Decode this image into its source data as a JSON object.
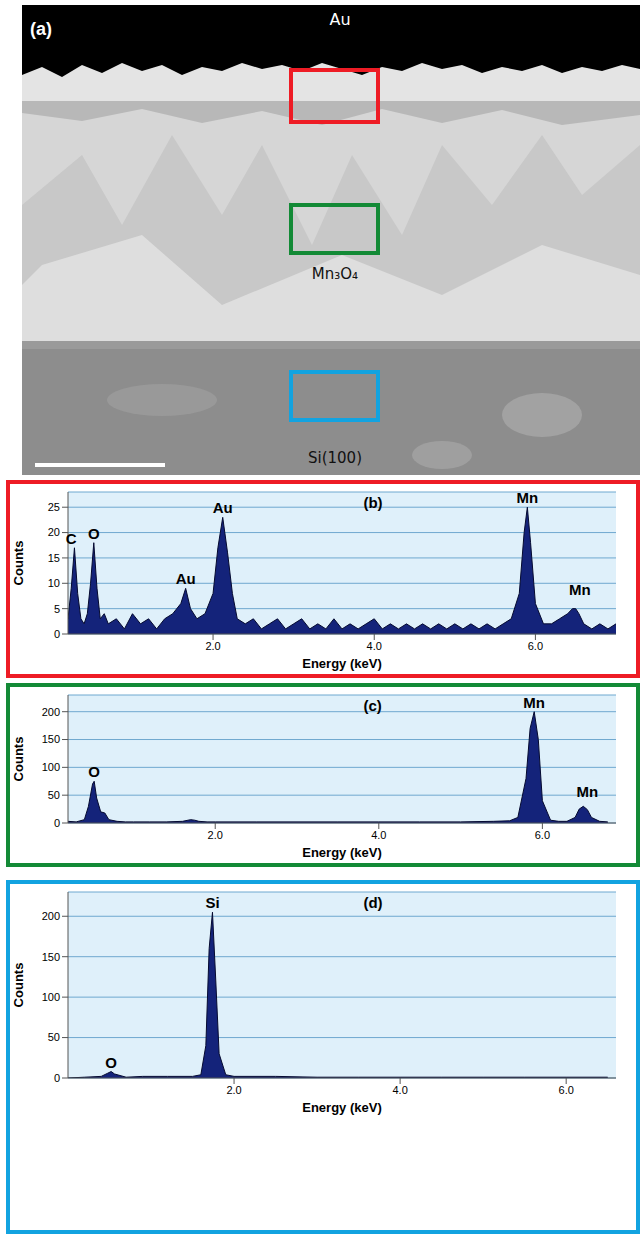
{
  "image": {
    "label": "(a)",
    "layers": [
      {
        "label": "Au"
      },
      {
        "label": "Mn₃O₄"
      },
      {
        "label": "Si(100)"
      }
    ],
    "boxes": [
      "#ee1c25",
      "#138a36",
      "#12a3e0"
    ]
  },
  "chart_data": [
    {
      "type": "area",
      "title": "(b)",
      "xlabel": "Energy (keV)",
      "ylabel": "Counts",
      "color": "#14237a",
      "grid": true,
      "xlim": [
        0.2,
        7.0
      ],
      "xticks": [
        {
          "value": 2,
          "label": "2.0"
        },
        {
          "value": 4,
          "label": "4.0"
        },
        {
          "value": 6,
          "label": "6.0"
        }
      ],
      "ylim": [
        0,
        28
      ],
      "yticks": [
        0,
        5,
        10,
        15,
        20,
        25
      ],
      "x": [
        0.2,
        0.24,
        0.28,
        0.32,
        0.36,
        0.4,
        0.44,
        0.48,
        0.52,
        0.56,
        0.6,
        0.65,
        0.7,
        0.8,
        0.9,
        1.0,
        1.1,
        1.2,
        1.3,
        1.4,
        1.5,
        1.6,
        1.66,
        1.72,
        1.8,
        1.9,
        2.0,
        2.06,
        2.12,
        2.18,
        2.24,
        2.3,
        2.4,
        2.5,
        2.6,
        2.7,
        2.8,
        2.9,
        3.0,
        3.1,
        3.2,
        3.3,
        3.4,
        3.5,
        3.6,
        3.7,
        3.8,
        3.9,
        4.0,
        4.1,
        4.2,
        4.3,
        4.4,
        4.5,
        4.6,
        4.7,
        4.8,
        4.9,
        5.0,
        5.1,
        5.2,
        5.3,
        5.4,
        5.5,
        5.6,
        5.7,
        5.8,
        5.86,
        5.9,
        5.94,
        6.0,
        6.1,
        6.2,
        6.3,
        6.4,
        6.46,
        6.5,
        6.54,
        6.6,
        6.7,
        6.8,
        6.9,
        7.0
      ],
      "values": [
        3,
        9,
        17,
        8,
        3,
        2,
        4,
        10,
        18,
        9,
        3,
        4,
        2,
        3,
        1,
        4,
        2,
        3,
        1,
        3,
        4,
        6,
        9,
        5,
        3,
        4,
        8,
        17,
        23,
        16,
        8,
        3,
        2,
        3,
        1,
        2,
        3,
        1,
        2,
        3,
        1,
        2,
        1,
        3,
        1,
        2,
        1,
        2,
        3,
        1,
        2,
        1,
        2,
        1,
        2,
        1,
        2,
        1,
        2,
        1,
        2,
        1,
        2,
        1,
        2,
        3,
        8,
        20,
        25,
        18,
        6,
        2,
        2,
        3,
        4,
        5,
        5,
        4,
        2,
        1,
        2,
        1,
        2
      ],
      "annotations": [
        {
          "text": "C",
          "x": 0.24,
          "y": 17
        },
        {
          "text": "O",
          "x": 0.52,
          "y": 18
        },
        {
          "text": "Au",
          "x": 1.66,
          "y": 9
        },
        {
          "text": "Au",
          "x": 2.12,
          "y": 23
        },
        {
          "text": "Mn",
          "x": 5.9,
          "y": 25
        },
        {
          "text": "Mn",
          "x": 6.55,
          "y": 7
        }
      ]
    },
    {
      "type": "area",
      "title": "(c)",
      "xlabel": "Energy (keV)",
      "ylabel": "Counts",
      "color": "#14237a",
      "grid": true,
      "xlim": [
        0.2,
        6.9
      ],
      "xticks": [
        {
          "value": 2,
          "label": "2.0"
        },
        {
          "value": 4,
          "label": "4.0"
        },
        {
          "value": 6,
          "label": "6.0"
        }
      ],
      "ylim": [
        0,
        230
      ],
      "yticks": [
        0,
        50,
        100,
        150,
        200
      ],
      "x": [
        0.2,
        0.3,
        0.4,
        0.45,
        0.5,
        0.52,
        0.55,
        0.6,
        0.65,
        0.7,
        0.8,
        0.9,
        1.0,
        1.2,
        1.4,
        1.6,
        1.7,
        1.75,
        1.8,
        1.9,
        2.0,
        2.5,
        3.0,
        3.5,
        4.0,
        4.5,
        5.0,
        5.4,
        5.6,
        5.7,
        5.8,
        5.85,
        5.9,
        5.95,
        6.0,
        6.1,
        6.2,
        6.3,
        6.4,
        6.45,
        6.5,
        6.55,
        6.6,
        6.7,
        6.8
      ],
      "values": [
        3,
        2,
        6,
        30,
        70,
        75,
        45,
        20,
        18,
        6,
        3,
        2,
        2,
        2,
        2,
        3,
        6,
        5,
        3,
        2,
        2,
        2,
        2,
        2,
        2,
        2,
        2,
        3,
        4,
        10,
        80,
        170,
        200,
        150,
        40,
        5,
        3,
        3,
        10,
        25,
        30,
        24,
        10,
        3,
        2
      ],
      "annotations": [
        {
          "text": "O",
          "x": 0.52,
          "y": 75
        },
        {
          "text": "Mn",
          "x": 5.9,
          "y": 200
        },
        {
          "text": "Mn",
          "x": 6.55,
          "y": 40
        }
      ]
    },
    {
      "type": "area",
      "title": "(d)",
      "xlabel": "Energy (keV)",
      "ylabel": "Counts",
      "color": "#14237a",
      "grid": true,
      "xlim": [
        0,
        6.6
      ],
      "xticks": [
        {
          "value": 2,
          "label": "2.0"
        },
        {
          "value": 4,
          "label": "4.0"
        },
        {
          "value": 6,
          "label": "6.0"
        }
      ],
      "ylim": [
        0,
        230
      ],
      "yticks": [
        0,
        50,
        100,
        150,
        200
      ],
      "x": [
        0,
        0.2,
        0.4,
        0.48,
        0.52,
        0.56,
        0.7,
        0.9,
        1.2,
        1.5,
        1.6,
        1.66,
        1.7,
        1.74,
        1.78,
        1.82,
        1.9,
        2.0,
        2.5,
        3.0,
        3.5,
        4.0,
        4.5,
        5.0,
        5.5,
        6.0,
        6.5
      ],
      "values": [
        0,
        1,
        2,
        6,
        8,
        5,
        1,
        2,
        2,
        2,
        4,
        40,
        160,
        205,
        120,
        30,
        4,
        2,
        2,
        1,
        1,
        1,
        1,
        1,
        1,
        1,
        1
      ],
      "annotations": [
        {
          "text": "O",
          "x": 0.52,
          "y": 8
        },
        {
          "text": "Si",
          "x": 1.74,
          "y": 205
        }
      ]
    }
  ]
}
